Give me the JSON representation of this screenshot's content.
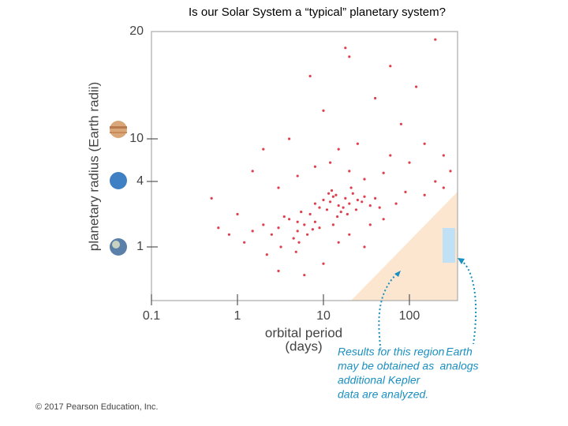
{
  "chart_data": {
    "type": "scatter",
    "title": "Is our Solar System a “typical” planetary system?",
    "x_label": [
      "orbital period",
      "(days)"
    ],
    "y_label": "planetary radius (Earth radii)",
    "xlim": [
      0.1,
      363
    ],
    "xticks": [
      0.1,
      1,
      10,
      100
    ],
    "log_x": true,
    "ylim": [
      0.32,
      20
    ],
    "yticks": [
      1,
      4,
      10,
      20
    ],
    "log_y": true,
    "series": [
      {
        "color": "#e0404e",
        "x": [
          12,
          15,
          18,
          11,
          20,
          14,
          25,
          9,
          16,
          22,
          13,
          17,
          28,
          10,
          19,
          24,
          30,
          12.5,
          8,
          35,
          40,
          45,
          21,
          14.5,
          11.5,
          3,
          4,
          5,
          6,
          2.5,
          7,
          3.5,
          4.5,
          5.5,
          2,
          6.5,
          8,
          1.5,
          1.2,
          3.2,
          4.8,
          2.2,
          5.2,
          7.5,
          9,
          5,
          8,
          12,
          20,
          30,
          50,
          3,
          15,
          25,
          60,
          100,
          10,
          4,
          40,
          80,
          150,
          7,
          20,
          60,
          120,
          2,
          1.5,
          250,
          200,
          300,
          90,
          150,
          70,
          0.5,
          0.8,
          0.6,
          1,
          35,
          50,
          20,
          15,
          30,
          3,
          10,
          6,
          18,
          5,
          13,
          200,
          250
        ],
        "y": [
          2.6,
          2.4,
          2.8,
          2.2,
          2.5,
          3.0,
          2.7,
          2.3,
          2.1,
          3.1,
          2.9,
          2.3,
          2.6,
          2.7,
          2.0,
          2.2,
          2.9,
          3.3,
          2.5,
          2.4,
          2.8,
          2.3,
          3.5,
          1.9,
          3.1,
          1.5,
          1.8,
          1.4,
          1.6,
          1.3,
          2.0,
          1.9,
          1.2,
          2.1,
          1.6,
          1.3,
          1.7,
          1.4,
          1.1,
          1.0,
          0.9,
          0.85,
          1.1,
          1.45,
          1.5,
          4.5,
          5.5,
          6,
          5,
          4.2,
          4.8,
          3.5,
          8,
          9,
          7,
          6,
          12,
          10,
          13,
          11,
          9,
          15,
          17,
          16,
          14,
          8,
          5,
          7,
          4,
          5,
          3.2,
          3,
          2.5,
          2.8,
          1.3,
          1.5,
          2,
          1.6,
          1.8,
          1.3,
          1.1,
          1.0,
          0.6,
          0.7,
          0.55,
          18,
          1.7,
          1.6,
          19,
          3.5
        ]
      }
    ],
    "region_note": [
      "Results for this region",
      "may be obtained as",
      "additional Kepler",
      "data are analyzed."
    ],
    "earth_note": [
      "Earth",
      "analogs"
    ]
  },
  "footer": "© 2017 Pearson Education, Inc."
}
